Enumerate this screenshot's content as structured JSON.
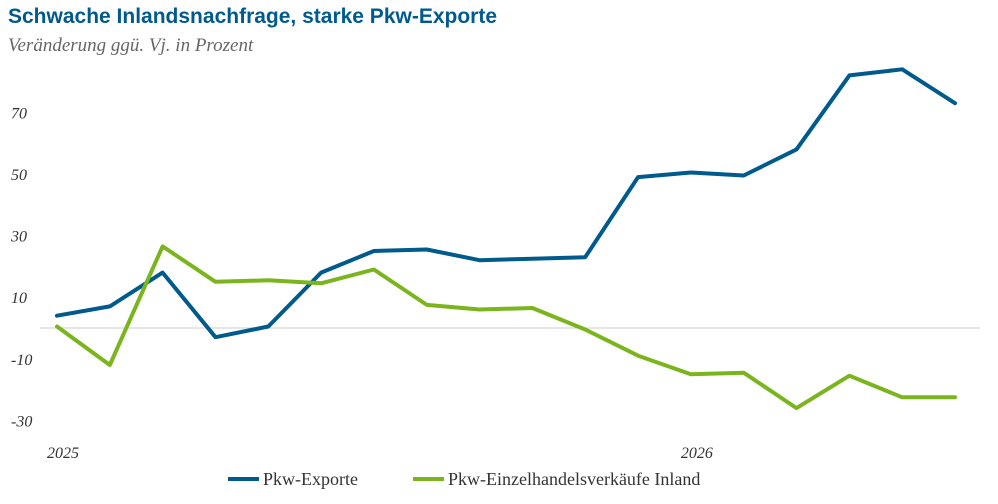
{
  "chart_data": {
    "type": "line",
    "title": "Schwache Inlandsnachfrage, starke Pkw-Exporte",
    "subtitle": "Veränderung ggü. Vj. in Prozent",
    "xlabel": "",
    "ylabel": "",
    "x_tick_labels": [
      "2025",
      "2026"
    ],
    "y_ticks": [
      70,
      50,
      30,
      10,
      -10,
      -30
    ],
    "ylim": [
      -33,
      82
    ],
    "grid": false,
    "legend_position": "bottom",
    "series": [
      {
        "name": "Pkw-Exporte",
        "color": "#005A8C",
        "values": [
          4,
          7,
          18,
          -3,
          0.5,
          18,
          25,
          25.5,
          22,
          22.5,
          23,
          49,
          50.5,
          49.5,
          58,
          82,
          84,
          73
        ]
      },
      {
        "name": "Pkw-Einzelhandelsverkäufe Inland",
        "color": "#7AB51D",
        "values": [
          0.5,
          -12,
          26.5,
          15,
          15.5,
          14.5,
          19,
          7.5,
          6,
          6.5,
          -0.5,
          -9,
          -15,
          -14.5,
          -26,
          -15.5,
          -22.5,
          -22.5
        ]
      }
    ]
  }
}
